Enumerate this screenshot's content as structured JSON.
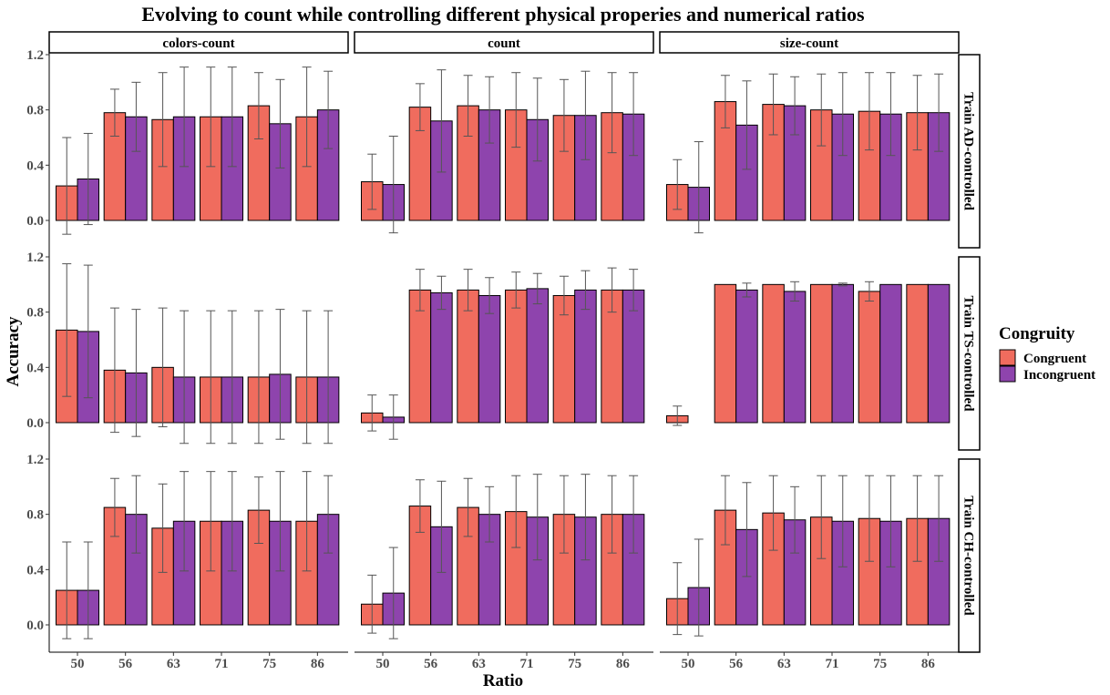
{
  "chart_data": {
    "type": "bar",
    "title": "Evolving to count while controlling different physical properies and numerical ratios",
    "xlabel": "Ratio",
    "ylabel": "Accuracy",
    "ylim": [
      -0.16,
      1.2
    ],
    "yticks": [
      "0.0",
      "0.4",
      "0.8",
      "1.2"
    ],
    "categories": [
      "50",
      "56",
      "63",
      "71",
      "75",
      "86"
    ],
    "grid": false,
    "legend": {
      "title": "Congruity",
      "position": "right",
      "entries": [
        {
          "name": "Congruent",
          "color": "#F06C5E"
        },
        {
          "name": "Incongruent",
          "color": "#8E44AD"
        }
      ]
    },
    "columns": [
      "colors-count",
      "count",
      "size-count"
    ],
    "rows": [
      "Train AD-controlled",
      "Train TS-controlled",
      "Train CH-controlled"
    ],
    "panels": [
      {
        "row": 0,
        "col": 0,
        "congruent": {
          "values": [
            0.25,
            0.78,
            0.73,
            0.75,
            0.83,
            0.75
          ],
          "err": [
            0.35,
            0.17,
            0.34,
            0.36,
            0.24,
            0.36
          ]
        },
        "incongruent": {
          "values": [
            0.3,
            0.75,
            0.75,
            0.75,
            0.7,
            0.8
          ],
          "err": [
            0.33,
            0.25,
            0.36,
            0.36,
            0.32,
            0.28
          ]
        }
      },
      {
        "row": 0,
        "col": 1,
        "congruent": {
          "values": [
            0.28,
            0.82,
            0.83,
            0.8,
            0.76,
            0.78
          ],
          "err": [
            0.2,
            0.17,
            0.22,
            0.27,
            0.26,
            0.29
          ]
        },
        "incongruent": {
          "values": [
            0.26,
            0.72,
            0.8,
            0.73,
            0.76,
            0.77
          ],
          "err": [
            0.35,
            0.37,
            0.24,
            0.3,
            0.32,
            0.3
          ]
        }
      },
      {
        "row": 0,
        "col": 2,
        "congruent": {
          "values": [
            0.26,
            0.86,
            0.84,
            0.8,
            0.79,
            0.78
          ],
          "err": [
            0.18,
            0.19,
            0.22,
            0.26,
            0.28,
            0.27
          ]
        },
        "incongruent": {
          "values": [
            0.24,
            0.69,
            0.83,
            0.77,
            0.77,
            0.78
          ],
          "err": [
            0.33,
            0.32,
            0.21,
            0.3,
            0.3,
            0.28
          ]
        }
      },
      {
        "row": 1,
        "col": 0,
        "congruent": {
          "values": [
            0.67,
            0.38,
            0.4,
            0.33,
            0.33,
            0.33
          ],
          "err": [
            0.48,
            0.45,
            0.43,
            0.48,
            0.48,
            0.48
          ]
        },
        "incongruent": {
          "values": [
            0.66,
            0.36,
            0.33,
            0.33,
            0.35,
            0.33
          ],
          "err": [
            0.48,
            0.46,
            0.48,
            0.48,
            0.47,
            0.48
          ]
        }
      },
      {
        "row": 1,
        "col": 1,
        "congruent": {
          "values": [
            0.07,
            0.96,
            0.96,
            0.96,
            0.92,
            0.96
          ],
          "err": [
            0.13,
            0.15,
            0.15,
            0.13,
            0.14,
            0.16
          ]
        },
        "incongruent": {
          "values": [
            0.04,
            0.94,
            0.92,
            0.97,
            0.96,
            0.96
          ],
          "err": [
            0.16,
            0.12,
            0.13,
            0.11,
            0.14,
            0.15
          ]
        }
      },
      {
        "row": 1,
        "col": 2,
        "congruent": {
          "values": [
            0.05,
            1.0,
            1.0,
            1.0,
            0.95,
            1.0
          ],
          "err": [
            0.07,
            0.0,
            0.0,
            0.0,
            0.07,
            0.0
          ]
        },
        "incongruent": {
          "values": [
            0.0,
            0.96,
            0.95,
            1.0,
            1.0,
            1.0
          ],
          "err": [
            0.0,
            0.05,
            0.07,
            0.01,
            0.0,
            0.0
          ]
        }
      },
      {
        "row": 2,
        "col": 0,
        "congruent": {
          "values": [
            0.25,
            0.85,
            0.7,
            0.75,
            0.83,
            0.75
          ],
          "err": [
            0.35,
            0.21,
            0.32,
            0.36,
            0.24,
            0.36
          ]
        },
        "incongruent": {
          "values": [
            0.25,
            0.8,
            0.75,
            0.75,
            0.75,
            0.8
          ],
          "err": [
            0.35,
            0.28,
            0.36,
            0.36,
            0.36,
            0.28
          ]
        }
      },
      {
        "row": 2,
        "col": 1,
        "congruent": {
          "values": [
            0.15,
            0.86,
            0.85,
            0.82,
            0.8,
            0.8
          ],
          "err": [
            0.21,
            0.19,
            0.21,
            0.26,
            0.28,
            0.28
          ]
        },
        "incongruent": {
          "values": [
            0.23,
            0.71,
            0.8,
            0.78,
            0.78,
            0.8
          ],
          "err": [
            0.33,
            0.33,
            0.2,
            0.31,
            0.31,
            0.28
          ]
        }
      },
      {
        "row": 2,
        "col": 2,
        "congruent": {
          "values": [
            0.19,
            0.83,
            0.81,
            0.78,
            0.77,
            0.77
          ],
          "err": [
            0.26,
            0.25,
            0.27,
            0.3,
            0.31,
            0.31
          ]
        },
        "incongruent": {
          "values": [
            0.27,
            0.69,
            0.76,
            0.75,
            0.75,
            0.77
          ],
          "err": [
            0.35,
            0.34,
            0.24,
            0.33,
            0.33,
            0.31
          ]
        }
      }
    ]
  }
}
